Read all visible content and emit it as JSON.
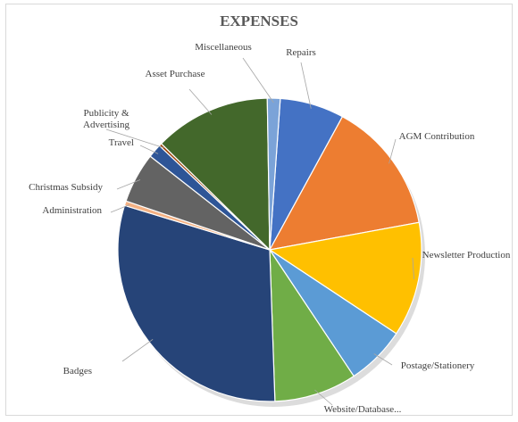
{
  "chart_data": {
    "type": "pie",
    "title": "EXPENSES",
    "categories": [
      "Repairs",
      "AGM Contribution",
      "Newsletter Production",
      "Postage/Stationery",
      "Website/Database...",
      "Badges",
      "Administration",
      "Christmas Subsidy",
      "Travel",
      "Publicity & Advertising",
      "Asset Purchase",
      "Miscellaneous"
    ],
    "values": [
      7.0,
      14.5,
      12.5,
      6.5,
      9.0,
      31.0,
      0.5,
      5.5,
      1.5,
      0.3,
      12.7,
      1.4
    ],
    "colors": [
      "#4472c4",
      "#ed7d31",
      "#ffc000",
      "#5b9bd5",
      "#70ad47",
      "#264478",
      "#f4b183",
      "#636363",
      "#2e5597",
      "#9e480e",
      "#43682b",
      "#7ba3d8"
    ],
    "legend": "none",
    "data_labels": "category names outside slices with leader lines"
  }
}
